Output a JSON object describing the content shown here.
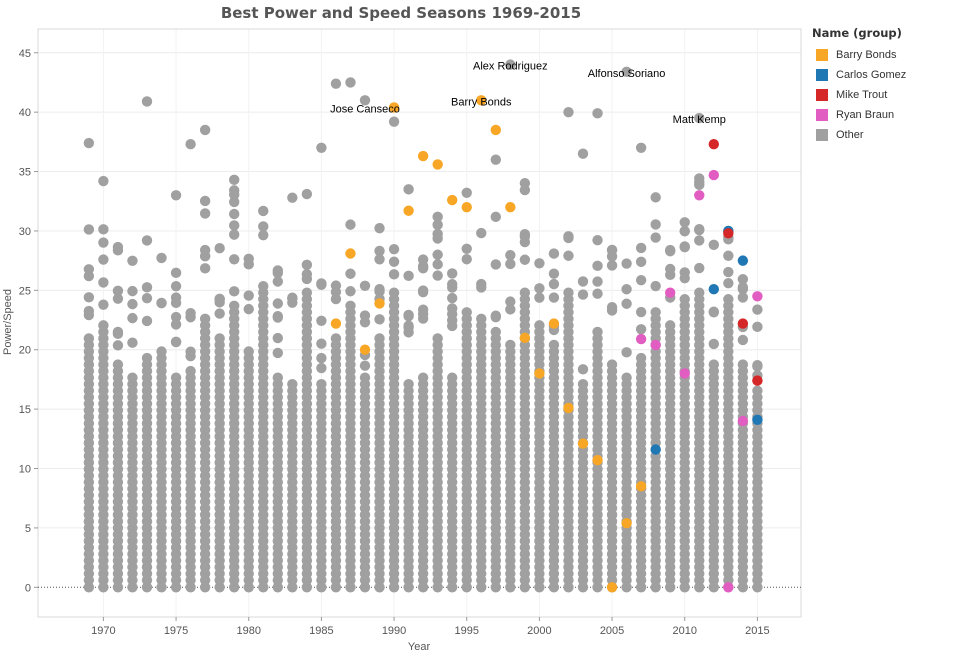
{
  "chart_data": {
    "type": "scatter",
    "title": "Best Power and Speed Seasons 1969-2015",
    "xlabel": "Year",
    "ylabel": "Power/Speed",
    "xlim": [
      1965.5,
      2018
    ],
    "ylim": [
      -2.5,
      47
    ],
    "xticks": [
      1970,
      1975,
      1980,
      1985,
      1990,
      1995,
      2000,
      2005,
      2010,
      2015
    ],
    "yticks": [
      0,
      5,
      10,
      15,
      20,
      25,
      30,
      35,
      40,
      45
    ],
    "grid": true,
    "legend": {
      "title": "Name (group)",
      "position": "right",
      "entries": [
        {
          "name": "Barry Bonds",
          "color": "#F8A626"
        },
        {
          "name": "Carlos Gomez",
          "color": "#1F77B4"
        },
        {
          "name": "Mike Trout",
          "color": "#D62728"
        },
        {
          "name": "Ryan Braun",
          "color": "#E15DC1"
        },
        {
          "name": "Other",
          "color": "#A0A0A0"
        }
      ]
    },
    "series": [
      {
        "name": "Barry Bonds",
        "color": "#F8A626",
        "x": [
          1986,
          1987,
          1988,
          1989,
          1990,
          1991,
          1992,
          1993,
          1994,
          1995,
          1996,
          1997,
          1998,
          1999,
          2000,
          2001,
          2002,
          2003,
          2004,
          2005,
          2006,
          2007
        ],
        "y": [
          22.2,
          28.1,
          20.0,
          23.9,
          40.4,
          31.7,
          36.3,
          35.6,
          32.6,
          32.0,
          41.0,
          38.5,
          32.0,
          21.0,
          18.0,
          22.2,
          15.1,
          12.1,
          10.7,
          0.0,
          5.4,
          8.5
        ]
      },
      {
        "name": "Carlos Gomez",
        "color": "#1F77B4",
        "x": [
          2008,
          2012,
          2013,
          2014,
          2015
        ],
        "y": [
          11.6,
          25.1,
          30.0,
          27.5,
          14.1
        ]
      },
      {
        "name": "Mike Trout",
        "color": "#D62728",
        "x": [
          2012,
          2013,
          2014,
          2015
        ],
        "y": [
          37.3,
          29.8,
          22.2,
          17.4
        ]
      },
      {
        "name": "Ryan Braun",
        "color": "#E15DC1",
        "x": [
          2007,
          2008,
          2009,
          2010,
          2011,
          2012,
          2013,
          2014,
          2015
        ],
        "y": [
          20.9,
          20.4,
          24.8,
          18.0,
          33.0,
          34.7,
          0.0,
          14.0,
          24.5
        ]
      },
      {
        "name": "Other",
        "color": "#A0A0A0",
        "x": [
          1969,
          1970,
          1973,
          1977,
          1979,
          1986,
          1987,
          1988,
          1990,
          1998,
          2002,
          2004,
          2006,
          2011,
          1975,
          1976,
          1983,
          1985,
          1991,
          1997,
          2003,
          2007
        ],
        "y": [
          37.4,
          34.2,
          40.9,
          38.5,
          34.3,
          42.4,
          42.5,
          41.0,
          39.2,
          44.0,
          40.0,
          39.9,
          43.4,
          39.5,
          33.0,
          37.3,
          32.8,
          37.0,
          33.5,
          36.0,
          36.5,
          37.0
        ]
      }
    ],
    "annotations": [
      {
        "text": "Jose Canseco",
        "x": 1988,
        "y": 40.4
      },
      {
        "text": "Barry Bonds",
        "x": 1996,
        "y": 41.0
      },
      {
        "text": "Alex Rodriguez",
        "x": 1998,
        "y": 44.0
      },
      {
        "text": "Alfonso Soriano",
        "x": 2006,
        "y": 43.4
      },
      {
        "text": "Matt Kemp",
        "x": 2011,
        "y": 39.5
      }
    ]
  }
}
